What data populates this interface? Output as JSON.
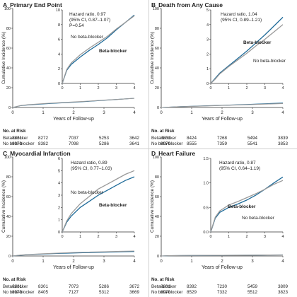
{
  "panels": [
    {
      "letter": "A",
      "title": "Primary End Point",
      "ylabel": "Cumulative Incidence (%)",
      "xlabel": "Years of Follow-up",
      "main_ticks_y": [
        "100",
        "80",
        "60",
        "40",
        "20",
        "0"
      ],
      "main_ticks_x": [
        "0",
        "1",
        "2",
        "3",
        "4"
      ],
      "inset_ticks_y": [
        "10",
        "8",
        "6",
        "4",
        "2",
        "0"
      ],
      "inset_ticks_x": [
        "0",
        "1",
        "2",
        "3",
        "4"
      ],
      "hr_line1": "Hazard ratio, 0.97",
      "hr_line2": "(95% CI, 0.87–1.07)",
      "p_value": "P=0.54",
      "no_bb_label": "No beta-blocker",
      "bb_label": "Beta-blocker",
      "risk_title": "No. at Risk",
      "risk_rows": [
        {
          "label": "Beta-blocker",
          "values": [
            "8831",
            "8272",
            "7037",
            "5253",
            "3642"
          ]
        },
        {
          "label": "No beta-blocker",
          "values": [
            "8970",
            "8382",
            "7098",
            "5286",
            "3641"
          ]
        }
      ]
    },
    {
      "letter": "B",
      "title": "Death from Any Cause",
      "ylabel": "Cumulative Incidence (%)",
      "xlabel": "Years of Follow-up",
      "main_ticks_y": [
        "100",
        "80",
        "60",
        "40",
        "20",
        "0"
      ],
      "main_ticks_x": [
        "0",
        "1",
        "2",
        "3",
        "4"
      ],
      "inset_ticks_y": [
        "5",
        "4",
        "3",
        "2",
        "1",
        "0"
      ],
      "inset_ticks_x": [
        "0",
        "1",
        "2",
        "3",
        "4"
      ],
      "hr_line1": "Hazard ratio, 1.04",
      "hr_line2": "(95% CI, 0.89–1.21)",
      "p_value": "",
      "no_bb_label": "No beta-blocker",
      "bb_label": "Beta-blocker",
      "risk_title": "No. at Risk",
      "risk_rows": [
        {
          "label": "Beta-blocker",
          "values": [
            "8831",
            "8424",
            "7268",
            "5494",
            "3839"
          ]
        },
        {
          "label": "No beta-blocker",
          "values": [
            "8970",
            "8555",
            "7359",
            "5541",
            "3853"
          ]
        }
      ]
    },
    {
      "letter": "C",
      "title": "Myocardial Infarction",
      "ylabel": "Cumulative Incidence (%)",
      "xlabel": "Years of Follow-up",
      "main_ticks_y": [
        "100",
        "80",
        "60",
        "40",
        "20",
        "0"
      ],
      "main_ticks_x": [
        "0",
        "1",
        "2",
        "3",
        "4"
      ],
      "inset_ticks_y": [
        "6",
        "5",
        "4",
        "3",
        "2",
        "1",
        "0"
      ],
      "inset_ticks_x": [
        "0",
        "1",
        "2",
        "3",
        "4"
      ],
      "hr_line1": "Hazard ratio, 0.89",
      "hr_line2": "(95% CI, 0.77–1.03)",
      "p_value": "",
      "no_bb_label": "No beta-blocker",
      "bb_label": "Beta-blocker",
      "risk_title": "No. at Risk",
      "risk_rows": [
        {
          "label": "Beta-blocker",
          "values": [
            "8831",
            "8301",
            "7073",
            "5286",
            "3672"
          ]
        },
        {
          "label": "No beta-blocker",
          "values": [
            "8970",
            "8405",
            "7127",
            "5312",
            "3669"
          ]
        }
      ]
    },
    {
      "letter": "D",
      "title": "Heart Failure",
      "ylabel": "Cumulative Incidence (%)",
      "xlabel": "Years of Follow-up",
      "main_ticks_y": [
        "100",
        "80",
        "60",
        "40",
        "20",
        "0"
      ],
      "main_ticks_x": [
        "0",
        "1",
        "2",
        "3",
        "4"
      ],
      "inset_ticks_y": [
        "1.5",
        "1.0",
        "0.5",
        "0.0"
      ],
      "inset_ticks_x": [
        "0",
        "1",
        "2",
        "3",
        "4"
      ],
      "hr_line1": "Hazard ratio, 0.87",
      "hr_line2": "(95% CI, 0.64–1.19)",
      "p_value": "",
      "no_bb_label": "No beta-blocker",
      "bb_label": "Beta-blocker",
      "risk_title": "No. at Risk",
      "risk_rows": [
        {
          "label": "Beta-blocker",
          "values": [
            "8831",
            "8392",
            "7230",
            "5459",
            "3809"
          ]
        },
        {
          "label": "No beta-blocker",
          "values": [
            "8970",
            "8529",
            "7332",
            "5512",
            "3823"
          ]
        }
      ]
    }
  ],
  "colors": {
    "beta_blocker": "#1f6b99",
    "no_beta_blocker": "#9a9a9a",
    "axis": "#333333"
  },
  "chart_data": [
    {
      "type": "line",
      "panel": "A",
      "title": "Primary End Point",
      "xlabel": "Years of Follow-up",
      "ylabel": "Cumulative Incidence (%)",
      "xlim": [
        0,
        4
      ],
      "main_ylim": [
        0,
        100
      ],
      "inset_ylim": [
        0,
        10
      ],
      "grid": false,
      "series": [
        {
          "name": "Beta-blocker",
          "x": [
            0,
            0.25,
            0.5,
            1,
            1.5,
            2,
            2.5,
            3,
            3.5,
            4
          ],
          "values": [
            0,
            1.8,
            2.6,
            3.6,
            4.5,
            5.3,
            6.2,
            7.3,
            8.3,
            9.3
          ]
        },
        {
          "name": "No beta-blocker",
          "x": [
            0,
            0.25,
            0.5,
            1,
            1.5,
            2,
            2.5,
            3,
            3.5,
            4
          ],
          "values": [
            0,
            1.9,
            2.8,
            3.9,
            4.8,
            5.6,
            6.4,
            7.4,
            8.3,
            9.2
          ]
        }
      ]
    },
    {
      "type": "line",
      "panel": "B",
      "title": "Death from Any Cause",
      "xlabel": "Years of Follow-up",
      "ylabel": "Cumulative Incidence (%)",
      "xlim": [
        0,
        4
      ],
      "main_ylim": [
        0,
        100
      ],
      "inset_ylim": [
        0,
        5
      ],
      "grid": false,
      "series": [
        {
          "name": "Beta-blocker",
          "x": [
            0,
            0.25,
            0.5,
            1,
            1.5,
            2,
            2.5,
            3,
            3.5,
            4
          ],
          "values": [
            0,
            0.35,
            0.7,
            1.2,
            1.7,
            2.2,
            2.75,
            3.3,
            3.9,
            4.5
          ]
        },
        {
          "name": "No beta-blocker",
          "x": [
            0,
            0.25,
            0.5,
            1,
            1.5,
            2,
            2.5,
            3,
            3.5,
            4
          ],
          "values": [
            0,
            0.3,
            0.65,
            1.15,
            1.6,
            2.05,
            2.55,
            3.0,
            3.5,
            4.0
          ]
        }
      ]
    },
    {
      "type": "line",
      "panel": "C",
      "title": "Myocardial Infarction",
      "xlabel": "Years of Follow-up",
      "ylabel": "Cumulative Incidence (%)",
      "xlim": [
        0,
        4
      ],
      "main_ylim": [
        0,
        100
      ],
      "inset_ylim": [
        0,
        6
      ],
      "grid": false,
      "series": [
        {
          "name": "Beta-blocker",
          "x": [
            0,
            0.25,
            0.5,
            1,
            1.5,
            2,
            2.5,
            3,
            3.5,
            4
          ],
          "values": [
            0,
            0.8,
            1.3,
            2.0,
            2.5,
            3.0,
            3.4,
            3.8,
            4.2,
            4.5
          ]
        },
        {
          "name": "No beta-blocker",
          "x": [
            0,
            0.25,
            0.5,
            1,
            1.5,
            2,
            2.5,
            3,
            3.5,
            4
          ],
          "values": [
            0,
            0.9,
            1.5,
            2.3,
            2.9,
            3.5,
            3.9,
            4.3,
            4.7,
            5.0
          ]
        }
      ]
    },
    {
      "type": "line",
      "panel": "D",
      "title": "Heart Failure",
      "xlabel": "Years of Follow-up",
      "ylabel": "Cumulative Incidence (%)",
      "xlim": [
        0,
        4
      ],
      "main_ylim": [
        0,
        100
      ],
      "inset_ylim": [
        0,
        1.5
      ],
      "grid": false,
      "series": [
        {
          "name": "Beta-blocker",
          "x": [
            0,
            0.25,
            0.5,
            1,
            1.5,
            2,
            2.5,
            3,
            3.5,
            4
          ],
          "values": [
            0,
            0.28,
            0.4,
            0.5,
            0.57,
            0.65,
            0.75,
            0.87,
            1.0,
            1.12
          ]
        },
        {
          "name": "No beta-blocker",
          "x": [
            0,
            0.25,
            0.5,
            1,
            1.5,
            2,
            2.5,
            3,
            3.5,
            4
          ],
          "values": [
            0,
            0.3,
            0.43,
            0.55,
            0.62,
            0.7,
            0.78,
            0.87,
            0.97,
            1.05
          ]
        }
      ]
    }
  ]
}
